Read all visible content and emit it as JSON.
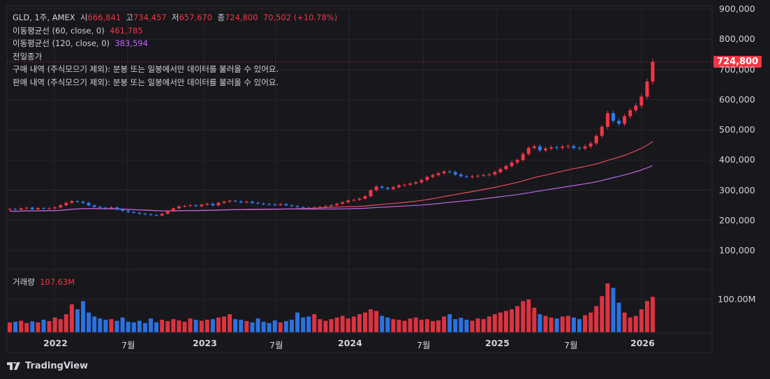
{
  "legend": {
    "symbol": "GLD, 1주, AMEX",
    "open_label": "시",
    "open": "666,841",
    "high_label": "고",
    "high": "734,457",
    "low_label": "저",
    "low": "657,670",
    "close_label": "종",
    "close": "724,800",
    "change": "70,502 (+10.78%)",
    "ma60_label": "이동평균선 (60, close, 0)",
    "ma60_value": "461,785",
    "ma120_label": "이동평균선 (120, close, 0)",
    "ma120_value": "383,594",
    "prev_close": "전일종가",
    "buy_history": "구매 내역 (주식모으기 제외): 분봉 또는 일봉에서만 데이터를 불러올 수 있어요.",
    "sell_history": "판매 내역 (주식모으기 제외): 분봉 또는 일봉에서만 데이터를 불러올 수 있어요."
  },
  "volume_legend": {
    "label": "거래량",
    "value": "107.63M"
  },
  "last_price_tag": "724,800",
  "footer": {
    "brand": "TradingView"
  },
  "colors": {
    "up": "#f23645",
    "down": "#2e7cf6",
    "ma60": "#e84b5a",
    "ma120": "#b866e0",
    "background": "#17171c",
    "grid": "#26262d"
  },
  "chart_data": {
    "type": "candlestick",
    "interval": "1 week (shown sampled)",
    "price_axis": {
      "ticks": [
        "900,000",
        "800,000",
        "700,000",
        "600,000",
        "500,000",
        "400,000",
        "300,000",
        "200,000",
        "100,000"
      ],
      "range": [
        100000,
        900000
      ]
    },
    "volume_axis": {
      "ticks": [
        "100.00M"
      ]
    },
    "time_axis": {
      "ticks": [
        "2022",
        "7월",
        "2023",
        "7월",
        "2024",
        "7월",
        "2025",
        "7월",
        "2026"
      ]
    },
    "grid": true,
    "closes_k": [
      238,
      236,
      240,
      242,
      237,
      241,
      239,
      240,
      243,
      250,
      258,
      264,
      262,
      258,
      250,
      245,
      242,
      240,
      243,
      236,
      232,
      228,
      225,
      222,
      220,
      218,
      216,
      222,
      232,
      240,
      246,
      248,
      250,
      247,
      252,
      255,
      250,
      258,
      262,
      265,
      263,
      260,
      262,
      258,
      256,
      254,
      253,
      251,
      254,
      250,
      247,
      244,
      242,
      241,
      243,
      245,
      247,
      250,
      255,
      260,
      266,
      268,
      272,
      280,
      300,
      312,
      308,
      304,
      310,
      316,
      318,
      322,
      326,
      334,
      344,
      350,
      356,
      362,
      360,
      352,
      346,
      344,
      346,
      348,
      350,
      352,
      360,
      370,
      380,
      392,
      400,
      420,
      440,
      445,
      432,
      438,
      442,
      440,
      444,
      446,
      440,
      438,
      445,
      455,
      480,
      510,
      555,
      530,
      520,
      545,
      565,
      580,
      610,
      660,
      725
    ],
    "volumes_m": [
      30,
      32,
      35,
      28,
      33,
      30,
      38,
      34,
      45,
      40,
      55,
      85,
      70,
      95,
      60,
      48,
      42,
      38,
      40,
      35,
      45,
      32,
      30,
      35,
      28,
      42,
      30,
      38,
      34,
      40,
      36,
      32,
      42,
      38,
      35,
      38,
      40,
      45,
      48,
      55,
      40,
      38,
      34,
      30,
      42,
      32,
      28,
      36,
      30,
      34,
      38,
      60,
      45,
      48,
      55,
      40,
      35,
      40,
      45,
      50,
      42,
      48,
      55,
      60,
      70,
      65,
      50,
      45,
      40,
      38,
      35,
      42,
      45,
      38,
      40,
      34,
      36,
      48,
      55,
      40,
      44,
      38,
      35,
      42,
      40,
      48,
      55,
      60,
      65,
      70,
      80,
      95,
      100,
      75,
      55,
      50,
      45,
      42,
      48,
      50,
      45,
      40,
      52,
      60,
      80,
      110,
      149,
      135,
      90,
      60,
      45,
      50,
      70,
      95,
      108
    ],
    "series": [
      {
        "name": "이동평균선 (60, close, 0)"
      },
      {
        "name": "이동평균선 (120, close, 0)"
      }
    ]
  }
}
